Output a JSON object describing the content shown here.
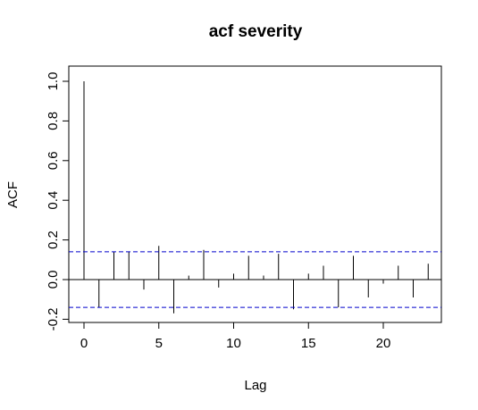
{
  "chart_data": {
    "type": "bar",
    "title": "acf severity",
    "xlabel": "Lag",
    "ylabel": "ACF",
    "xlim": [
      -1,
      24
    ],
    "ylim": [
      -0.2,
      1.0
    ],
    "xticks": [
      0,
      5,
      10,
      15,
      20
    ],
    "xtick_labels": [
      "0",
      "5",
      "10",
      "15",
      "20"
    ],
    "yticks": [
      -0.2,
      0.0,
      0.2,
      0.4,
      0.6,
      0.8,
      1.0
    ],
    "ytick_labels": [
      "-0.2",
      "0.0",
      "0.2",
      "0.4",
      "0.6",
      "0.8",
      "1.0"
    ],
    "lags": [
      0,
      1,
      2,
      3,
      4,
      5,
      6,
      7,
      8,
      9,
      10,
      11,
      12,
      13,
      14,
      15,
      16,
      17,
      18,
      19,
      20,
      21,
      22,
      23
    ],
    "values": [
      1.0,
      -0.14,
      0.14,
      0.14,
      -0.05,
      0.17,
      -0.17,
      0.02,
      0.15,
      -0.04,
      0.03,
      0.12,
      0.02,
      0.13,
      -0.15,
      0.03,
      0.07,
      -0.14,
      0.12,
      -0.09,
      -0.02,
      0.07,
      -0.09,
      0.08
    ],
    "confidence_bound": 0.14,
    "colors": {
      "bars": "#000000",
      "confidence": "#0000cc",
      "zero_line": "#000000"
    }
  }
}
